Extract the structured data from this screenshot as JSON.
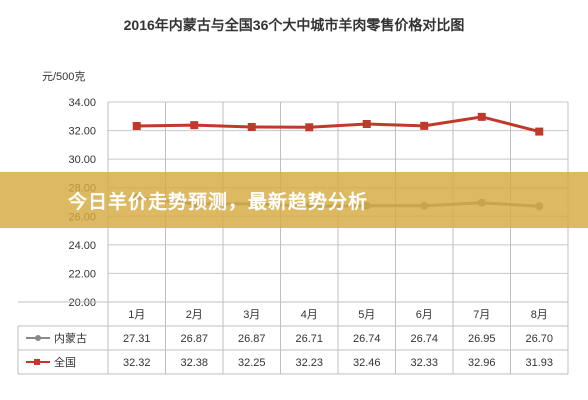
{
  "chart_data": {
    "type": "line",
    "title": "2016年内蒙古与全国36个大中城市羊肉零售价格对比图",
    "ylabel": "元/500克",
    "xlabel": "",
    "categories": [
      "1月",
      "2月",
      "3月",
      "4月",
      "5月",
      "6月",
      "7月",
      "8月"
    ],
    "ylim": [
      20,
      34
    ],
    "yticks": [
      "20.00",
      "22.00",
      "24.00",
      "26.00",
      "28.00",
      "30.00",
      "32.00",
      "34.00"
    ],
    "grid": true,
    "legend": "data-table",
    "series": [
      {
        "name": "内蒙古",
        "color": "#8a8a8a",
        "values": [
          27.31,
          26.87,
          26.87,
          26.71,
          26.74,
          26.74,
          26.95,
          26.7
        ],
        "labels": [
          "27.31",
          "26.87",
          "26.87",
          "26.71",
          "26.74",
          "26.74",
          "26.95",
          "26.70"
        ]
      },
      {
        "name": "全国",
        "color": "#c0392b",
        "values": [
          32.32,
          32.38,
          32.25,
          32.23,
          32.46,
          32.33,
          32.96,
          31.93
        ],
        "labels": [
          "32.32",
          "32.38",
          "32.25",
          "32.23",
          "32.46",
          "32.33",
          "32.96",
          "31.93"
        ]
      }
    ]
  },
  "overlay": {
    "banner_text": "今日羊价走势预测，最新趋势分析",
    "banner_color": "#d5a940"
  }
}
